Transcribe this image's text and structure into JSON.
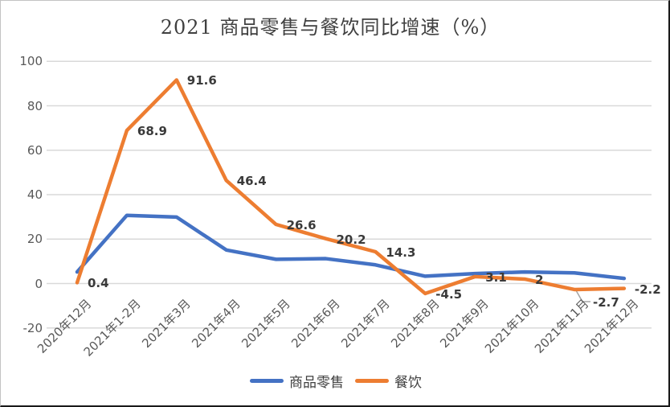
{
  "chart_data": {
    "type": "line",
    "title": "2021 商品零售与餐饮同比增速（%）",
    "categories": [
      "2020年12月",
      "2021年1-2月",
      "2021年3月",
      "2021年4月",
      "2021年5月",
      "2021年6月",
      "2021年7月",
      "2021年8月",
      "2021年9月",
      "2021年10月",
      "2021年11月",
      "2021年12月"
    ],
    "series": [
      {
        "name": "商品零售",
        "color": "#4472C4",
        "values": [
          5.2,
          30.7,
          29.9,
          15.1,
          10.9,
          11.2,
          8.4,
          3.3,
          4.5,
          5.2,
          4.8,
          2.3
        ],
        "data_labels_shown": false
      },
      {
        "name": "餐饮",
        "color": "#ED7D31",
        "values": [
          0.4,
          68.9,
          91.6,
          46.4,
          26.6,
          20.2,
          14.3,
          -4.5,
          3.1,
          2,
          -2.7,
          -2.2
        ],
        "data_labels_shown": true,
        "data_labels": [
          "0.4",
          "68.9",
          "91.6",
          "46.4",
          "26.6",
          "20.2",
          "14.3",
          "-4.5",
          "3.1",
          "2",
          "-2.7",
          "-2.2"
        ]
      }
    ],
    "ylim": [
      -20,
      100
    ],
    "yticks": [
      100,
      80,
      60,
      40,
      20,
      0,
      -20
    ],
    "grid": true,
    "legend_position": "bottom",
    "xlabel": "",
    "ylabel": ""
  },
  "colors": {
    "goods_line": "#4472C4",
    "catering_line": "#ED7D31",
    "gridline": "#D9D9D9",
    "axis_text": "#595959",
    "data_label_text": "#3A3A3A",
    "title_text": "#404040",
    "leader_line": "#A6A6A6",
    "background": "#FFFFFF"
  }
}
